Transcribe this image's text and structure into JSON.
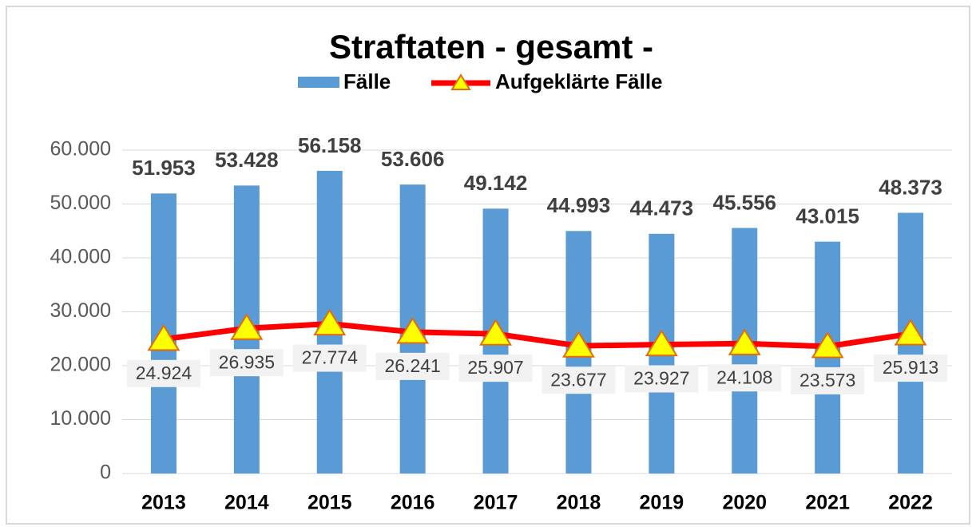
{
  "chart_data": {
    "type": "bar",
    "title": "Straftaten - gesamt -",
    "categories": [
      "2013",
      "2014",
      "2015",
      "2016",
      "2017",
      "2018",
      "2019",
      "2020",
      "2021",
      "2022"
    ],
    "series": [
      {
        "name": "Fälle",
        "type": "bar",
        "color": "#5b9bd5",
        "values": [
          51953,
          53428,
          56158,
          53606,
          49142,
          44993,
          44473,
          45556,
          43015,
          48373
        ],
        "value_labels": [
          "51.953",
          "53.428",
          "56.158",
          "53.606",
          "49.142",
          "44.993",
          "44.473",
          "45.556",
          "43.015",
          "48.373"
        ]
      },
      {
        "name": "Aufgeklärte Fälle",
        "type": "line",
        "color": "#ff0000",
        "marker_color": "#ffff00",
        "values": [
          24924,
          26935,
          27774,
          26241,
          25907,
          23677,
          23927,
          24108,
          23573,
          25913
        ],
        "value_labels": [
          "24.924",
          "26.935",
          "27.774",
          "26.241",
          "25.907",
          "23.677",
          "23.927",
          "24.108",
          "23.573",
          "25.913"
        ]
      }
    ],
    "ylim": [
      0,
      60000
    ],
    "yticks": [
      0,
      {
        "value": 10000,
        "label": "10.000"
      },
      {
        "value": 20000,
        "label": "20.000"
      },
      {
        "value": 30000,
        "label": "30.000"
      },
      {
        "value": 40000,
        "label": "40.000"
      },
      {
        "value": 50000,
        "label": "50.000"
      },
      {
        "value": 60000,
        "label": "60.000"
      }
    ],
    "grid": true,
    "legend": "top"
  }
}
